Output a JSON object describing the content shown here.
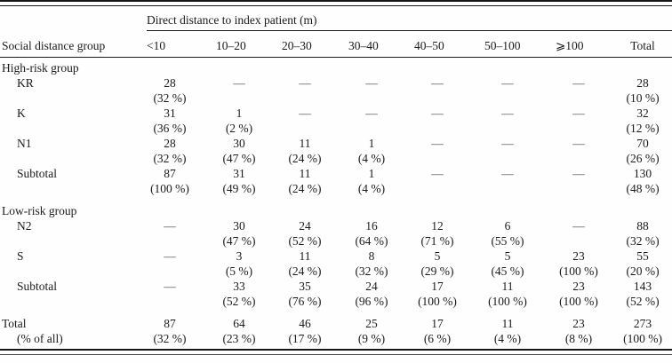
{
  "table": {
    "spanner": "Direct distance to index patient (m)",
    "row_header": "Social distance group",
    "columns": [
      "<10",
      "10–20",
      "20–30",
      "30–40",
      "40–50",
      "50–100",
      "⩾100",
      "Total"
    ],
    "empty_cell_mark": "—",
    "rows": [
      {
        "type": "group",
        "label": "High-risk group"
      },
      {
        "type": "data",
        "label": "KR",
        "cells": [
          [
            "28",
            "(32 %)"
          ],
          [
            "—",
            ""
          ],
          [
            "—",
            ""
          ],
          [
            "—",
            ""
          ],
          [
            "—",
            ""
          ],
          [
            "—",
            ""
          ],
          [
            "—",
            ""
          ],
          [
            "28",
            "(10 %)"
          ]
        ]
      },
      {
        "type": "data",
        "label": "K",
        "cells": [
          [
            "31",
            "(36 %)"
          ],
          [
            "1",
            "(2 %)"
          ],
          [
            "—",
            ""
          ],
          [
            "—",
            ""
          ],
          [
            "—",
            ""
          ],
          [
            "—",
            ""
          ],
          [
            "—",
            ""
          ],
          [
            "32",
            "(12 %)"
          ]
        ]
      },
      {
        "type": "data",
        "label": "N1",
        "cells": [
          [
            "28",
            "(32 %)"
          ],
          [
            "30",
            "(47 %)"
          ],
          [
            "11",
            "(24 %)"
          ],
          [
            "1",
            "(4 %)"
          ],
          [
            "—",
            ""
          ],
          [
            "—",
            ""
          ],
          [
            "—",
            ""
          ],
          [
            "70",
            "(26 %)"
          ]
        ]
      },
      {
        "type": "data",
        "label": "Subtotal",
        "cells": [
          [
            "87",
            "(100 %)"
          ],
          [
            "31",
            "(49 %)"
          ],
          [
            "11",
            "(24 %)"
          ],
          [
            "1",
            "(4 %)"
          ],
          [
            "—",
            ""
          ],
          [
            "—",
            ""
          ],
          [
            "—",
            ""
          ],
          [
            "130",
            "(48 %)"
          ]
        ]
      },
      {
        "type": "group",
        "label": "Low-risk group",
        "spaced": true
      },
      {
        "type": "data",
        "label": "N2",
        "cells": [
          [
            "—",
            ""
          ],
          [
            "30",
            "(47 %)"
          ],
          [
            "24",
            "(52 %)"
          ],
          [
            "16",
            "(64 %)"
          ],
          [
            "12",
            "(71 %)"
          ],
          [
            "6",
            "(55 %)"
          ],
          [
            "—",
            ""
          ],
          [
            "88",
            "(32 %)"
          ]
        ]
      },
      {
        "type": "data",
        "label": "S",
        "cells": [
          [
            "—",
            ""
          ],
          [
            "3",
            "(5 %)"
          ],
          [
            "11",
            "(24 %)"
          ],
          [
            "8",
            "(32 %)"
          ],
          [
            "5",
            "(29 %)"
          ],
          [
            "5",
            "(45 %)"
          ],
          [
            "23",
            "(100 %)"
          ],
          [
            "55",
            "(20 %)"
          ]
        ]
      },
      {
        "type": "data",
        "label": "Subtotal",
        "cells": [
          [
            "—",
            ""
          ],
          [
            "33",
            "(52 %)"
          ],
          [
            "35",
            "(76 %)"
          ],
          [
            "24",
            "(96 %)"
          ],
          [
            "17",
            "(100 %)"
          ],
          [
            "11",
            "(100 %)"
          ],
          [
            "23",
            "(100 %)"
          ],
          [
            "143",
            "(52 %)"
          ]
        ]
      },
      {
        "type": "data",
        "label": "Total",
        "sublabel": "(% of all)",
        "flush": true,
        "spaced": true,
        "cells": [
          [
            "87",
            "(32 %)"
          ],
          [
            "64",
            "(23 %)"
          ],
          [
            "46",
            "(17 %)"
          ],
          [
            "25",
            "(9 %)"
          ],
          [
            "17",
            "(6 %)"
          ],
          [
            "11",
            "(4 %)"
          ],
          [
            "23",
            "(8 %)"
          ],
          [
            "273",
            "(100 %)"
          ]
        ]
      }
    ]
  }
}
